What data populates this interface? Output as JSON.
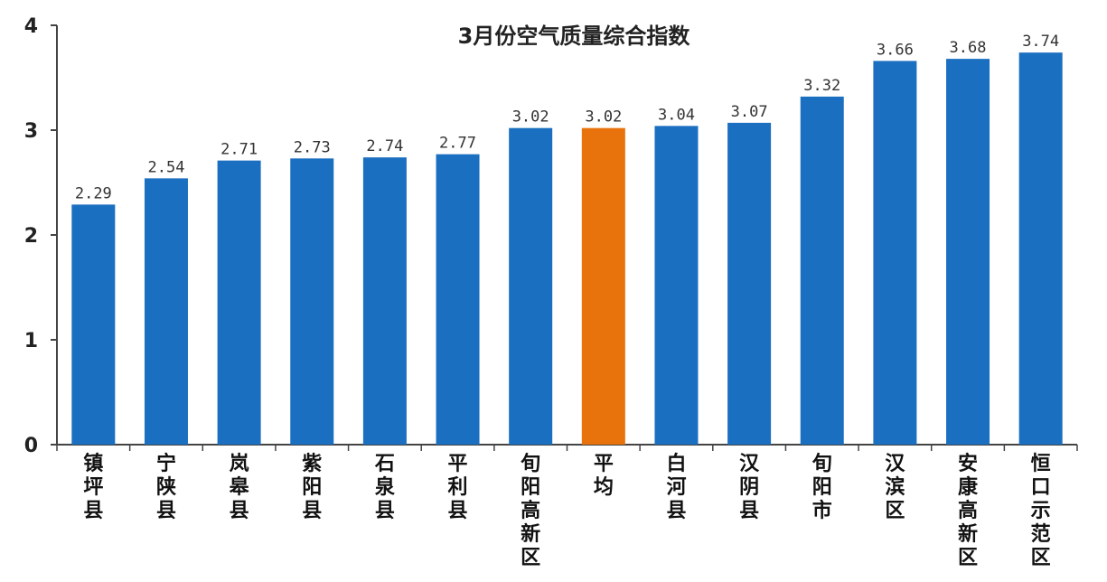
{
  "chart_data": {
    "type": "bar",
    "title": "3月份空气质量综合指数",
    "xlabel": "",
    "ylabel": "",
    "ylim": [
      0,
      4
    ],
    "yticks": [
      "0",
      "1",
      "2",
      "3",
      "4"
    ],
    "grid": false,
    "legend": "none",
    "categories": [
      "镇坪县",
      "宁陕县",
      "岚皋县",
      "紫阳县",
      "石泉县",
      "平利县",
      "旬阳高新区",
      "平均",
      "白河县",
      "汉阴县",
      "旬阳市",
      "汉滨区",
      "安康高新区",
      "恒口示范区"
    ],
    "values": [
      2.29,
      2.54,
      2.71,
      2.73,
      2.74,
      2.77,
      3.02,
      3.02,
      3.04,
      3.07,
      3.32,
      3.66,
      3.68,
      3.74
    ],
    "value_labels": [
      "2.29",
      "2.54",
      "2.71",
      "2.73",
      "2.74",
      "2.77",
      "3.02",
      "3.02",
      "3.04",
      "3.07",
      "3.32",
      "3.66",
      "3.68",
      "3.74"
    ],
    "colors": {
      "bar": "#1a6fc0",
      "highlight": "#e8720c",
      "axis": "#444444"
    },
    "highlight_category": "平均"
  }
}
